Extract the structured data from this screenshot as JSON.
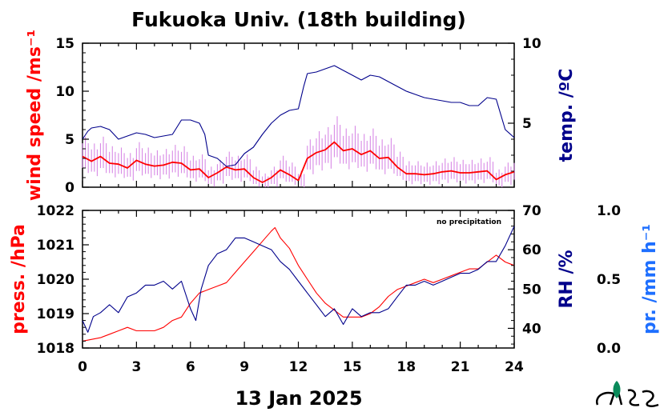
{
  "title": "Fukuoka Univ. (18th building)",
  "date_label": "13 Jan 2025",
  "colors": {
    "red": "#ff0000",
    "navy": "#00008b",
    "blue": "#1e6fff",
    "violet": "#d88ae6",
    "teal": "#0a8a5a"
  },
  "chart_data": [
    {
      "type": "line",
      "panel": "top",
      "x_label": "",
      "xlim": [
        0,
        24
      ],
      "x_ticks": [
        0,
        3,
        6,
        9,
        12,
        15,
        18,
        21,
        24
      ],
      "left_axis": {
        "label": "wind speed /ms⁻¹",
        "ylim": [
          0,
          15
        ],
        "ticks": [
          0,
          5,
          10,
          15
        ],
        "color": "#ff0000"
      },
      "right_axis": {
        "label": "temp. /ºC",
        "ylim": [
          1,
          10
        ],
        "ticks": [
          5,
          10
        ],
        "color": "#00008b"
      },
      "series": [
        {
          "axis": "left",
          "color": "#ff0000",
          "x": [
            0,
            0.5,
            1,
            1.5,
            2,
            2.5,
            3,
            3.5,
            4,
            4.5,
            5,
            5.5,
            6,
            6.5,
            7,
            7.5,
            8,
            8.5,
            9,
            9.5,
            10,
            10.5,
            11,
            11.5,
            12,
            12.5,
            13,
            13.5,
            14,
            14.5,
            15,
            15.5,
            16,
            16.5,
            17,
            17.5,
            18,
            18.5,
            19,
            19.5,
            20,
            20.5,
            21,
            21.5,
            22,
            22.5,
            23,
            23.5,
            24
          ],
          "y": [
            3.2,
            2.7,
            3.2,
            2.5,
            2.4,
            2.0,
            2.8,
            2.4,
            2.2,
            2.3,
            2.6,
            2.5,
            1.8,
            1.9,
            1.0,
            1.5,
            2.1,
            1.8,
            1.9,
            1.0,
            0.5,
            1.0,
            1.8,
            1.3,
            0.7,
            3.0,
            3.6,
            3.9,
            4.7,
            3.8,
            4.0,
            3.4,
            3.8,
            3.0,
            3.1,
            2.1,
            1.4,
            1.4,
            1.3,
            1.4,
            1.6,
            1.7,
            1.5,
            1.5,
            1.6,
            1.7,
            0.8,
            1.3,
            1.6
          ]
        },
        {
          "axis": "right",
          "color": "#00008b",
          "x": [
            0,
            0.3,
            0.5,
            1,
            1.5,
            2,
            2.5,
            3,
            3.5,
            4,
            4.5,
            5,
            5.5,
            6,
            6.5,
            6.8,
            7,
            7.5,
            8,
            8.5,
            9,
            9.5,
            10,
            10.5,
            11,
            11.5,
            12,
            12.3,
            12.5,
            13,
            13.5,
            14,
            14.5,
            15,
            15.5,
            16,
            16.5,
            17,
            17.5,
            18,
            18.5,
            19,
            19.5,
            20,
            20.5,
            21,
            21.5,
            22,
            22.5,
            23,
            23.5,
            24
          ],
          "y": [
            4.0,
            4.5,
            4.7,
            4.8,
            4.6,
            4.0,
            4.2,
            4.4,
            4.3,
            4.1,
            4.2,
            4.3,
            5.2,
            5.2,
            5.0,
            4.3,
            3.0,
            2.8,
            2.3,
            2.4,
            3.1,
            3.5,
            4.3,
            5.0,
            5.5,
            5.8,
            5.9,
            7.3,
            8.1,
            8.2,
            8.4,
            8.6,
            8.3,
            8.0,
            7.7,
            8.0,
            7.9,
            7.6,
            7.3,
            7.0,
            6.8,
            6.6,
            6.5,
            6.4,
            6.3,
            6.3,
            6.1,
            6.1,
            6.6,
            6.5,
            4.6,
            4.1
          ]
        }
      ]
    },
    {
      "type": "line",
      "panel": "bottom",
      "x_label": "13 Jan 2025",
      "xlim": [
        0,
        24
      ],
      "x_ticks": [
        0,
        3,
        6,
        9,
        12,
        15,
        18,
        21,
        24
      ],
      "left_axis": {
        "label": "press. /hPa",
        "ylim": [
          1018,
          1022
        ],
        "ticks": [
          1018,
          1019,
          1020,
          1021,
          1022
        ],
        "color": "#ff0000"
      },
      "right_axis": {
        "label": "RH /%",
        "ylim": [
          35,
          70
        ],
        "ticks": [
          40,
          50,
          60,
          70
        ],
        "color": "#00008b"
      },
      "far_right_axis": {
        "label": "pr. /mm h⁻¹",
        "ylim": [
          0,
          1
        ],
        "ticks": [
          0.0,
          0.5,
          1.0
        ],
        "tick_labels": [
          "0.0",
          "0.5",
          "1.0"
        ],
        "color": "#1e6fff"
      },
      "annotation": "no precipitation",
      "series": [
        {
          "axis": "left",
          "color": "#ff0000",
          "x": [
            0,
            1,
            1.5,
            2,
            2.5,
            3,
            3.5,
            4,
            4.5,
            5,
            5.5,
            6,
            6.5,
            7,
            7.5,
            8,
            8.5,
            9,
            9.5,
            10,
            10.5,
            10.7,
            11,
            11.5,
            12,
            12.5,
            13,
            13.5,
            14,
            14.5,
            15,
            15.5,
            16,
            16.5,
            17,
            17.5,
            18,
            18.5,
            19,
            19.5,
            20,
            20.5,
            21,
            21.5,
            22,
            22.5,
            23,
            23.5,
            24
          ],
          "y": [
            1018.2,
            1018.3,
            1018.4,
            1018.5,
            1018.6,
            1018.5,
            1018.5,
            1018.5,
            1018.6,
            1018.8,
            1018.9,
            1019.3,
            1019.6,
            1019.7,
            1019.8,
            1019.9,
            1020.2,
            1020.5,
            1020.8,
            1021.1,
            1021.4,
            1021.5,
            1021.2,
            1020.9,
            1020.4,
            1020.0,
            1019.6,
            1019.3,
            1019.1,
            1018.9,
            1018.9,
            1018.9,
            1019.0,
            1019.2,
            1019.5,
            1019.7,
            1019.8,
            1019.9,
            1020.0,
            1019.9,
            1020.0,
            1020.1,
            1020.2,
            1020.3,
            1020.3,
            1020.5,
            1020.7,
            1020.5,
            1020.4
          ]
        },
        {
          "axis": "right",
          "color": "#00008b",
          "x": [
            0,
            0.3,
            0.6,
            1,
            1.5,
            2,
            2.5,
            3,
            3.5,
            4,
            4.5,
            5,
            5.5,
            6,
            6.3,
            6.6,
            7,
            7.5,
            8,
            8.5,
            9,
            9.5,
            10,
            10.5,
            11,
            11.5,
            12,
            12.5,
            13,
            13.5,
            14,
            14.5,
            15,
            15.5,
            16,
            16.5,
            17,
            17.5,
            18,
            18.5,
            19,
            19.5,
            20,
            20.5,
            21,
            21.5,
            22,
            22.5,
            23,
            23.5,
            24
          ],
          "y": [
            42,
            39,
            43,
            44,
            46,
            44,
            48,
            49,
            51,
            51,
            52,
            50,
            52,
            45,
            42,
            50,
            56,
            59,
            60,
            63,
            63,
            62,
            61,
            60,
            57,
            55,
            52,
            49,
            46,
            43,
            45,
            41,
            45,
            43,
            44,
            44,
            45,
            48,
            51,
            51,
            52,
            51,
            52,
            53,
            54,
            54,
            55,
            57,
            57,
            61,
            66
          ]
        }
      ]
    }
  ]
}
